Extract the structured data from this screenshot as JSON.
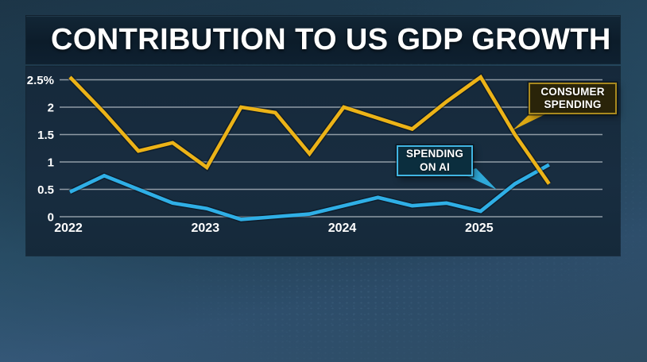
{
  "title": "CONTRIBUTION TO US GDP GROWTH",
  "chart_data": {
    "type": "line",
    "title": "CONTRIBUTION TO US GDP GROWTH",
    "x_axis": {
      "tick_labels": [
        "2022",
        "2023",
        "2024",
        "2025"
      ],
      "frequency": "quarterly",
      "range_note": "Q1 2022 through Q3 2025, 15 quarterly points per series"
    },
    "y_axis": {
      "tick_labels": [
        "2.5%",
        "2",
        "1.5",
        "1",
        "0.5",
        "0"
      ],
      "tick_values": [
        2.5,
        2,
        1.5,
        1,
        0.5,
        0
      ],
      "unit": "percentage points",
      "range": [
        -0.1,
        2.6
      ]
    },
    "grid": true,
    "series": [
      {
        "name": "Consumer spending",
        "color": "#ecb317",
        "values": [
          2.55,
          1.9,
          1.2,
          1.35,
          0.9,
          2.0,
          1.9,
          1.15,
          2.0,
          1.8,
          1.6,
          2.1,
          2.55,
          1.5,
          0.6
        ]
      },
      {
        "name": "Spending on AI",
        "color": "#2fafe6",
        "values": [
          0.45,
          0.75,
          0.5,
          0.25,
          0.15,
          -0.05,
          0.0,
          0.05,
          0.2,
          0.35,
          0.2,
          0.25,
          0.1,
          0.6,
          0.95
        ]
      }
    ],
    "legend_position": "callout labels on chart"
  },
  "callouts": {
    "consumer": {
      "line1": "CONSUMER",
      "line2": "SPENDING",
      "border_color": "#a8891f",
      "fill_color": "#2a2409",
      "tail_color": "#dca814"
    },
    "ai": {
      "line1": "SPENDING",
      "line2": "ON AI",
      "border_color": "#41b5e3",
      "fill_color": "#0b2e3e",
      "tail_color": "#2fa9d8"
    }
  }
}
